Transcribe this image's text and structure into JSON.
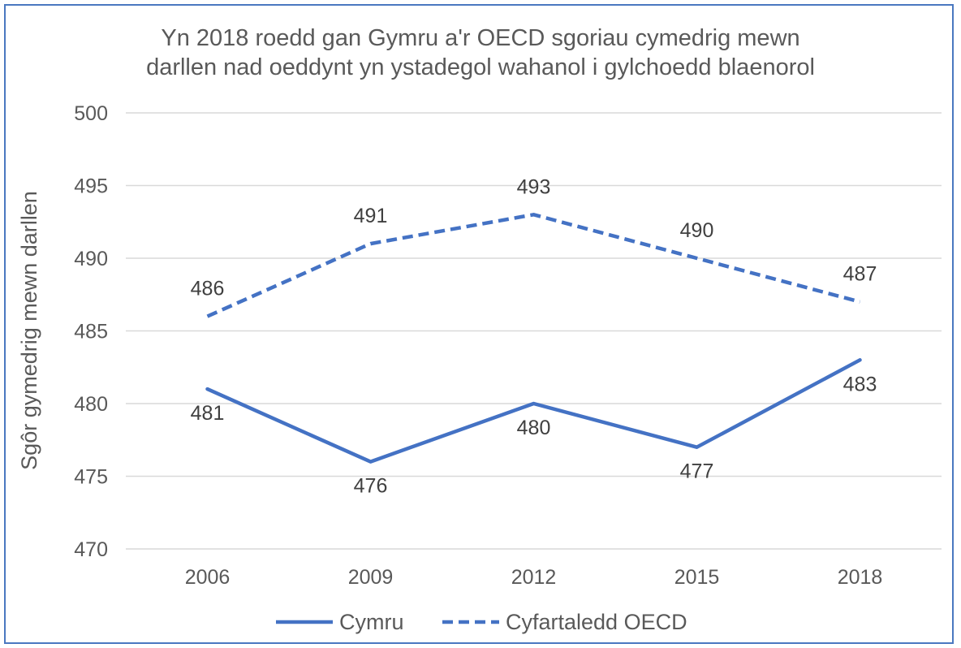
{
  "chart_data": {
    "type": "line",
    "title": "Yn 2018 roedd gan Gymru a'r OECD sgoriau cymedrig mewn darllen nad oeddynt yn ystadegol wahanol i gylchoedd blaenorol",
    "title_lines": [
      "Yn 2018 roedd gan Gymru a'r OECD sgoriau cymedrig mewn",
      "darllen nad oeddynt yn ystadegol wahanol i gylchoedd blaenorol"
    ],
    "xlabel": "",
    "ylabel": "Sgôr gymedrig mewn darllen",
    "categories": [
      "2006",
      "2009",
      "2012",
      "2015",
      "2018"
    ],
    "ylim": [
      470,
      500
    ],
    "yticks": [
      470,
      475,
      480,
      485,
      490,
      495,
      500
    ],
    "grid": true,
    "legend_position": "bottom",
    "series": [
      {
        "name": "Cymru",
        "values": [
          481,
          476,
          480,
          477,
          483
        ],
        "style": "solid",
        "color": "#4472c4",
        "label_position": "below"
      },
      {
        "name": "Cyfartaledd OECD",
        "values": [
          486,
          491,
          493,
          490,
          487
        ],
        "style": "dashed",
        "color": "#4472c4",
        "label_position": "above"
      }
    ]
  }
}
